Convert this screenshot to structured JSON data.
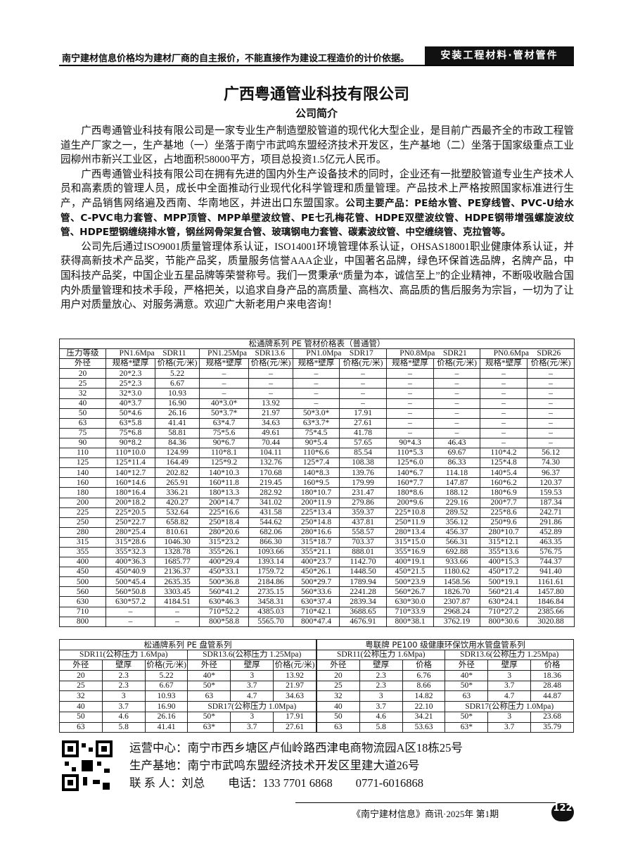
{
  "header": {
    "notice": "南宁建材信息价格均为建材厂商的自主报价，不能直接作为建设工程造价的计价依据。",
    "section": "安装工程材料·管材管件"
  },
  "company": {
    "title": "广西粤通管业科技有限公司",
    "subtitle": "公司简介",
    "p1": "广西粤通管业科技有限公司是一家专业生产制造塑胶管道的现代化大型企业，是目前广西最齐全的市政工程管道生产厂家之一，生产基地（一）坐落于南宁市武鸣东盟经济技术开发区，生产基地（二）坐落于国家级重点工业园柳州市新兴工业区，占地面积58000平方，项目总投资1.5亿元人民币。",
    "p2": "广西粤通管业科技有限公司在拥有先进的国内外生产设备技术的同时，企业还有一批塑胶管道专业生产技术人员和高素质的管理人员，成长中全面推动行业现代化科学管理和质量管理。产品技术上严格按照国家标准进行生产，产品销售网络遍及西南、华南地区，并进出口东盟国家。",
    "p2_bold": "公司主要产品：PE给水管、PE穿线管、PVC-U给水管、C-PVC电力套管、MPP顶管、MPP单壁波纹管、PE七孔梅花管、HDPE双壁波纹管、HDPE钢带增强螺旋波纹管、HDPE塑钢缠绕排水管，钢丝网骨架复合管、玻璃钢电力套管、碳素波纹管、中空缠绕管、克拉管等。",
    "p3": "公司先后通过ISO9001质量管理体系认证，ISO14001环境管理体系认证，OHSAS18001职业健康体系认证，并获得高新技术产品奖，节能产品奖，质量服务信誉AAA企业，中国著名品牌，绿色环保首选品牌，名牌产品，中国科技产品奖，中国企业五星品牌等荣誉称号。我们一贯秉承“质量为本，诚信至上”的企业精神，不断吸收融合国内外质量管理和技术手段，严格把关，以追求自身产品的高质量、高档次、高品质的售后服务为宗旨，一切为了让用户对质量放心、对服务满意。欢迎广大新老用户来电咨询！"
  },
  "price_table": {
    "title": "松通牌系列 PE 管材价格表（普通管）",
    "header1": [
      "压力等级",
      "PN1.6Mpa　SDR11",
      "PN1.25Mpa　SDR13.6",
      "PN1.0Mpa　SDR17",
      "PN0.8Mpa　SDR21",
      "PN0.6Mpa　SDR26"
    ],
    "header2": [
      "外径",
      "规格*壁厚",
      "价格(元/米)",
      "规格*壁厚",
      "价格(元/米)",
      "规格*壁厚",
      "价格(元/米)",
      "规格*壁厚",
      "价格(元/米)",
      "规格*壁厚",
      "价格(元/米)"
    ],
    "rows": [
      [
        "20",
        "20*2.3",
        "5.22",
        "–",
        "–",
        "–",
        "–",
        "–",
        "–",
        "–",
        "–"
      ],
      [
        "25",
        "25*2.3",
        "6.67",
        "–",
        "–",
        "–",
        "–",
        "–",
        "–",
        "–",
        "–"
      ],
      [
        "32",
        "32*3.0",
        "10.93",
        "–",
        "–",
        "–",
        "–",
        "–",
        "–",
        "–",
        "–"
      ],
      [
        "40",
        "40*3.7",
        "16.90",
        "40*3.0*",
        "13.92",
        "–",
        "–",
        "–",
        "–",
        "–",
        "–"
      ],
      [
        "50",
        "50*4.6",
        "26.16",
        "50*3.7*",
        "21.97",
        "50*3.0*",
        "17.91",
        "–",
        "–",
        "–",
        "–"
      ],
      [
        "63",
        "63*5.8",
        "41.41",
        "63*4.7",
        "34.63",
        "63*3.7*",
        "27.61",
        "–",
        "–",
        "–",
        "–"
      ],
      [
        "75",
        "75*6.8",
        "58.81",
        "75*5.6",
        "49.61",
        "75*4.5",
        "41.78",
        "–",
        "–",
        "–",
        "–"
      ],
      [
        "90",
        "90*8.2",
        "84.36",
        "90*6.7",
        "70.44",
        "90*5.4",
        "57.65",
        "90*4.3",
        "46.43",
        "–",
        "–"
      ],
      [
        "110",
        "110*10.0",
        "124.99",
        "110*8.1",
        "104.11",
        "110*6.6",
        "85.54",
        "110*5.3",
        "69.67",
        "110*4.2",
        "56.12"
      ],
      [
        "125",
        "125*11.4",
        "164.49",
        "125*9.2",
        "132.76",
        "125*7.4",
        "108.38",
        "125*6.0",
        "86.33",
        "125*4.8",
        "74.30"
      ],
      [
        "140",
        "140*12.7",
        "202.82",
        "140*10.3",
        "170.68",
        "140*8.3",
        "139.76",
        "140*6.7",
        "114.18",
        "140*5.4",
        "96.37"
      ],
      [
        "160",
        "160*14.6",
        "265.91",
        "160*11.8",
        "219.45",
        "160*9.5",
        "179.99",
        "160*7.7",
        "147.87",
        "160*6.2",
        "120.37"
      ],
      [
        "180",
        "180*16.4",
        "336.21",
        "180*13.3",
        "282.92",
        "180*10.7",
        "231.47",
        "180*8.6",
        "188.12",
        "180*6.9",
        "159.53"
      ],
      [
        "200",
        "200*18.2",
        "420.27",
        "200*14.7",
        "341.02",
        "200*11.9",
        "279.86",
        "200*9.6",
        "229.16",
        "200*7.7",
        "187.34"
      ],
      [
        "225",
        "225*20.5",
        "532.64",
        "225*16.6",
        "431.58",
        "225*13.4",
        "359.37",
        "225*10.8",
        "289.52",
        "225*8.6",
        "242.71"
      ],
      [
        "250",
        "250*22.7",
        "658.82",
        "250*18.4",
        "544.62",
        "250*14.8",
        "437.81",
        "250*11.9",
        "356.12",
        "250*9.6",
        "291.86"
      ],
      [
        "280",
        "280*25.4",
        "810.61",
        "280*20.6",
        "682.06",
        "280*16.6",
        "558.57",
        "280*13.4",
        "456.37",
        "280*10.7",
        "452.89"
      ],
      [
        "315",
        "315*28.6",
        "1046.30",
        "315*23.2",
        "866.30",
        "315*18.7",
        "703.37",
        "315*15.0",
        "566.31",
        "315*12.1",
        "463.35"
      ],
      [
        "355",
        "355*32.3",
        "1328.78",
        "355*26.1",
        "1093.66",
        "355*21.1",
        "888.01",
        "355*16.9",
        "692.88",
        "355*13.6",
        "576.75"
      ],
      [
        "400",
        "400*36.3",
        "1685.77",
        "400*29.4",
        "1393.14",
        "400*23.7",
        "1142.70",
        "400*19.1",
        "933.66",
        "400*15.3",
        "744.37"
      ],
      [
        "450",
        "450*40.9",
        "2136.37",
        "450*33.1",
        "1759.72",
        "450*26.1",
        "1448.50",
        "450*21.5",
        "1180.62",
        "450*17.2",
        "941.40"
      ],
      [
        "500",
        "500*45.4",
        "2635.35",
        "500*36.8",
        "2184.86",
        "500*29.7",
        "1789.94",
        "500*23.9",
        "1458.56",
        "500*19.1",
        "1161.61"
      ],
      [
        "560",
        "560*50.8",
        "3303.45",
        "560*41.2",
        "2735.15",
        "560*33.6",
        "2241.28",
        "560*26.7",
        "1826.70",
        "560*21.4",
        "1457.80"
      ],
      [
        "630",
        "630*57.2",
        "4184.51",
        "630*46.3",
        "3458.31",
        "630*37.4",
        "2839.34",
        "630*30.0",
        "2307.87",
        "630*24.1",
        "1846.84"
      ],
      [
        "710",
        "–",
        "–",
        "710*52.2",
        "4385.03",
        "710*42.1",
        "3688.65",
        "710*33.9",
        "2968.24",
        "710*27.2",
        "2385.66"
      ],
      [
        "800",
        "–",
        "–",
        "800*58.8",
        "5565.70",
        "800*47.4",
        "4676.91",
        "800*38.1",
        "3762.19",
        "800*30.6",
        "3020.88"
      ]
    ]
  },
  "coil_tables": [
    {
      "title": "松通牌系列 PE 盘管系列",
      "groups": [
        "SDR11(公称压力 1.6Mpa)",
        "SDR13.6(公称压力 1.25Mpa)"
      ],
      "header": [
        "外径",
        "壁厚",
        "价格(元/米)",
        "外径",
        "壁厚",
        "价格(元/米)"
      ],
      "rows": [
        [
          "20",
          "2.3",
          "5.22",
          "40*",
          "3",
          "13.92"
        ],
        [
          "25",
          "2.3",
          "6.67",
          "50*",
          "3.7",
          "21.97"
        ],
        [
          "32",
          "3",
          "10.93",
          "63",
          "4.7",
          "34.63"
        ],
        [
          "40",
          "3.7",
          "16.90",
          "SDR17(公称压力 1.0Mpa)"
        ],
        [
          "50",
          "4.6",
          "26.16",
          "50*",
          "3",
          "17.91"
        ],
        [
          "63",
          "5.8",
          "41.41",
          "63*",
          "3.7",
          "27.61"
        ]
      ]
    },
    {
      "title": "粤联牌 PE100 级健康环保饮用水管盘管系列",
      "groups": [
        "SDR11(公称压力 1.6Mpa)",
        "SDR13.6(公称压力 1.25Mpa)"
      ],
      "header": [
        "外径",
        "壁厚",
        "价格",
        "外径",
        "壁厚",
        "价格"
      ],
      "rows": [
        [
          "20",
          "2.3",
          "6.76",
          "40*",
          "3",
          "18.36"
        ],
        [
          "25",
          "2.3",
          "8.66",
          "50*",
          "3.7",
          "28.48"
        ],
        [
          "32",
          "3",
          "14.82",
          "63",
          "4.7",
          "44.87"
        ],
        [
          "40",
          "3.7",
          "22.10",
          "SDR17(公称压力 1.0Mpa)"
        ],
        [
          "50",
          "4.6",
          "34.21",
          "50*",
          "3",
          "23.68"
        ],
        [
          "63",
          "5.8",
          "53.63",
          "63*",
          "3.7",
          "35.79"
        ]
      ]
    }
  ],
  "contact": {
    "office": "运营中心：南宁市西乡塘区卢仙岭路西津电商物流园A区18栋25号",
    "factory": "生产基地：南宁市武鸣东盟经济技术开发区里建大道26号",
    "person": "联 系 人：刘总",
    "phone": "电话：133 7701 6868",
    "tel": "0771-6016868"
  },
  "footer": {
    "issue": "《南宁建材信息》商讯·2025年 第1期",
    "page": "122"
  }
}
